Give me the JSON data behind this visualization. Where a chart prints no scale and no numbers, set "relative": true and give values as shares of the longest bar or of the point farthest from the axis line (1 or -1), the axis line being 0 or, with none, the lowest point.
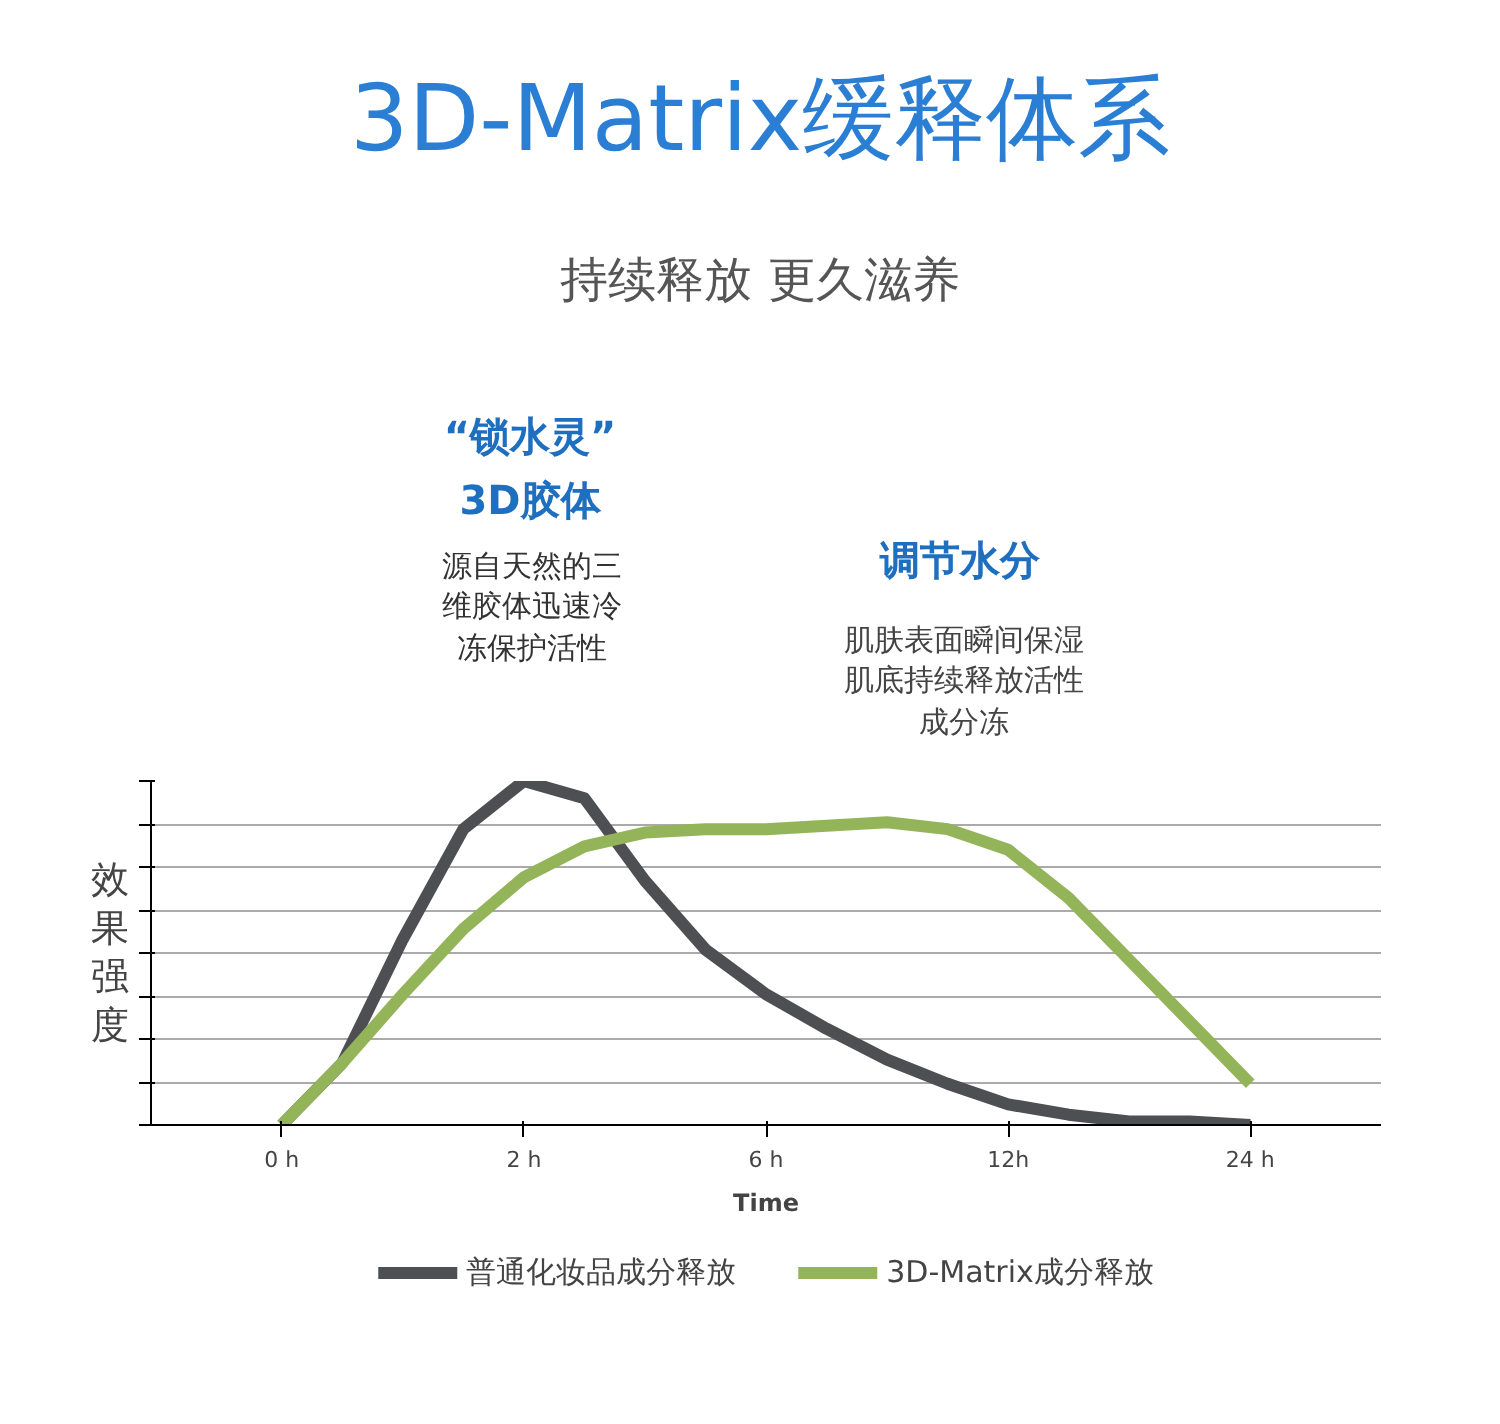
{
  "chart_data": {
    "type": "line",
    "title": "3D-Matrix缓释体系",
    "subtitle": "持续释放 更久滋养",
    "xlabel": "Time",
    "ylabel": "效果强度",
    "annotations": [
      "“锁水灵”",
      "3D胶体",
      "源自天然的三维胶体迅速冷冻保护活性",
      "调节水分",
      "肌肤表面瞬间保湿肌底持续释放活性成分冻"
    ],
    "categories": [
      "0 h",
      null,
      null,
      null,
      "2 h",
      null,
      null,
      null,
      "6 h",
      null,
      null,
      null,
      "12h",
      null,
      null,
      null,
      "24 h"
    ],
    "relative": true,
    "grid": "y",
    "legend": "bottom",
    "marker": "none",
    "line_style": "solid",
    "series": [
      {
        "name": "普通化妆品成分释放",
        "color": "#4d4f53",
        "values": [
          0,
          0.18,
          0.54,
          0.86,
          1.0,
          0.95,
          0.71,
          0.51,
          0.38,
          0.28,
          0.19,
          0.12,
          0.06,
          0.03,
          0.01,
          0.01,
          0.0
        ]
      },
      {
        "name": "3D-Matrix成分释放",
        "color": "#94b45a",
        "values": [
          0,
          0.18,
          0.38,
          0.57,
          0.72,
          0.81,
          0.85,
          0.86,
          0.86,
          0.87,
          0.88,
          0.86,
          0.8,
          0.66,
          0.48,
          0.3,
          0.12
        ]
      }
    ]
  }
}
